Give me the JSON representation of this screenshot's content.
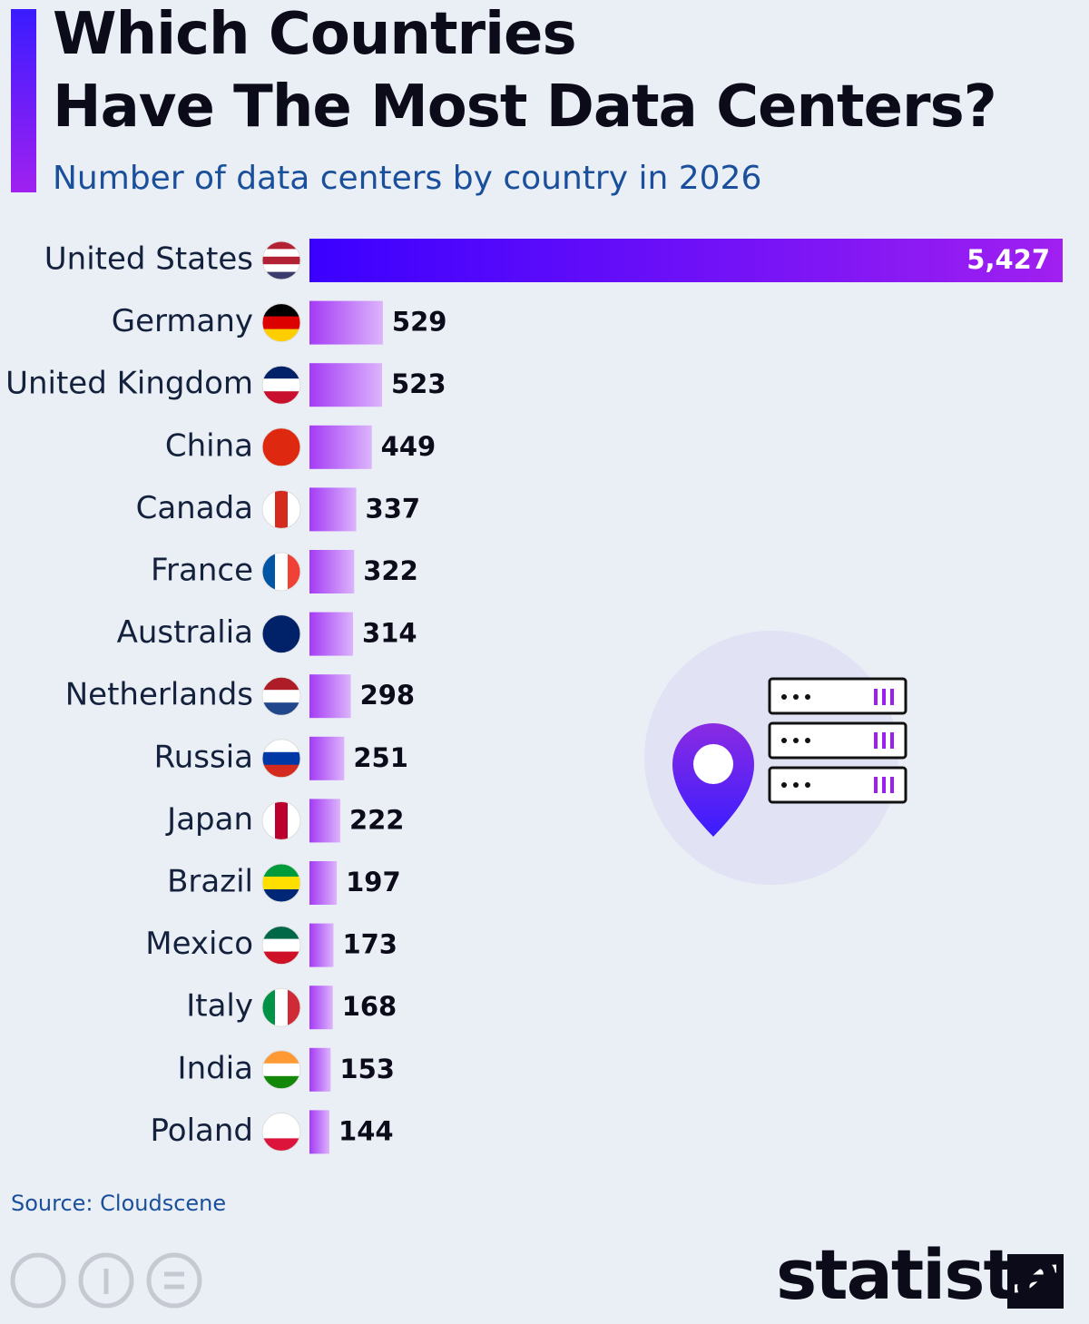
{
  "chart_data": {
    "type": "bar",
    "orientation": "horizontal",
    "title": "Which Countries\nHave The Most Data Centers?",
    "subtitle": "Number of data centers by country in 2026",
    "categories": [
      "United States",
      "Germany",
      "United Kingdom",
      "China",
      "Canada",
      "France",
      "Australia",
      "Netherlands",
      "Russia",
      "Japan",
      "Brazil",
      "Mexico",
      "Italy",
      "India",
      "Poland"
    ],
    "values": [
      5427,
      529,
      523,
      449,
      337,
      322,
      314,
      298,
      251,
      222,
      197,
      173,
      168,
      153,
      144
    ],
    "value_labels": [
      "5,427",
      "529",
      "523",
      "449",
      "337",
      "322",
      "314",
      "298",
      "251",
      "222",
      "197",
      "173",
      "168",
      "153",
      "144"
    ],
    "color": "#a020f0",
    "source": "Source: Cloudscene",
    "brand": "statista"
  }
}
